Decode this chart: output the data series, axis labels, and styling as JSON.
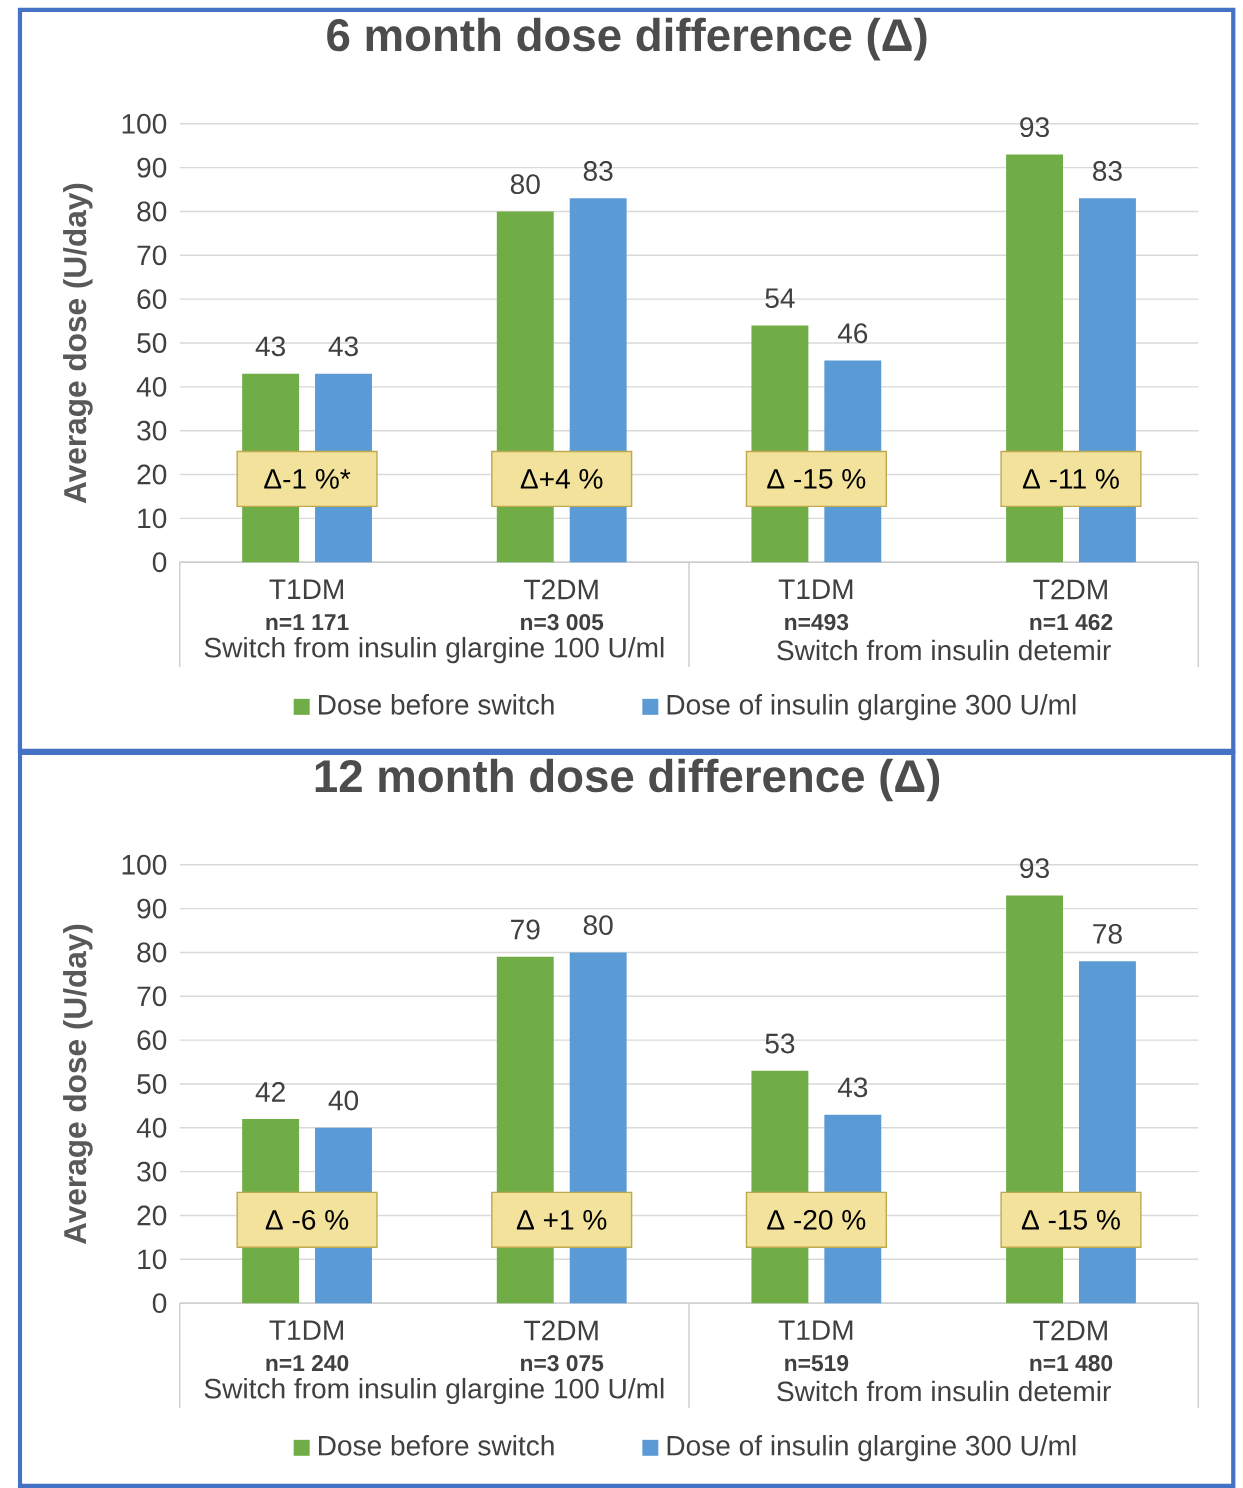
{
  "chart_data": [
    {
      "type": "bar",
      "title": "6 month dose difference (Δ)",
      "ylabel": "Average dose (U/day)",
      "categories": [
        "T1DM",
        "T2DM",
        "T1DM",
        "T2DM"
      ],
      "series": [
        {
          "name": "Dose before switch",
          "color": "#70ad47",
          "values": [
            43,
            80,
            54,
            93
          ]
        },
        {
          "name": "Dose of insulin glargine 300 U/ml",
          "color": "#5b9bd5",
          "values": [
            43,
            83,
            46,
            83
          ]
        }
      ],
      "ylim": [
        0,
        100
      ],
      "yticks": [
        0,
        10,
        20,
        30,
        40,
        50,
        60,
        70,
        80,
        90,
        100
      ],
      "grid": "y",
      "legend": "bottom",
      "data_labels": true,
      "annotations": [
        "n=1 171",
        "n=3 005",
        "n=493",
        "n=1 462",
        "Switch from insulin glargine 100 U/ml",
        "Switch from insulin detemir",
        "Δ-1 %*",
        "Δ+4 %",
        "Δ -15 %",
        "Δ -11 %"
      ]
    },
    {
      "type": "bar",
      "title": "12 month dose difference (Δ)",
      "ylabel": "Average dose (U/day)",
      "categories": [
        "T1DM",
        "T2DM",
        "T1DM",
        "T2DM"
      ],
      "series": [
        {
          "name": "Dose before switch",
          "color": "#70ad47",
          "values": [
            42,
            79,
            53,
            93
          ]
        },
        {
          "name": "Dose of insulin glargine 300 U/ml",
          "color": "#5b9bd5",
          "values": [
            40,
            80,
            43,
            78
          ]
        }
      ],
      "ylim": [
        0,
        100
      ],
      "yticks": [
        0,
        10,
        20,
        30,
        40,
        50,
        60,
        70,
        80,
        90,
        100
      ],
      "grid": "y",
      "legend": "bottom",
      "data_labels": true,
      "annotations": [
        "n=1 240",
        "n=3 075",
        "n=519",
        "n=1 480",
        "Switch from insulin glargine 100 U/ml",
        "Switch from insulin detemir",
        "Δ -6 %",
        "Δ +1 %",
        "Δ -20 %",
        "Δ -15 %"
      ]
    }
  ]
}
